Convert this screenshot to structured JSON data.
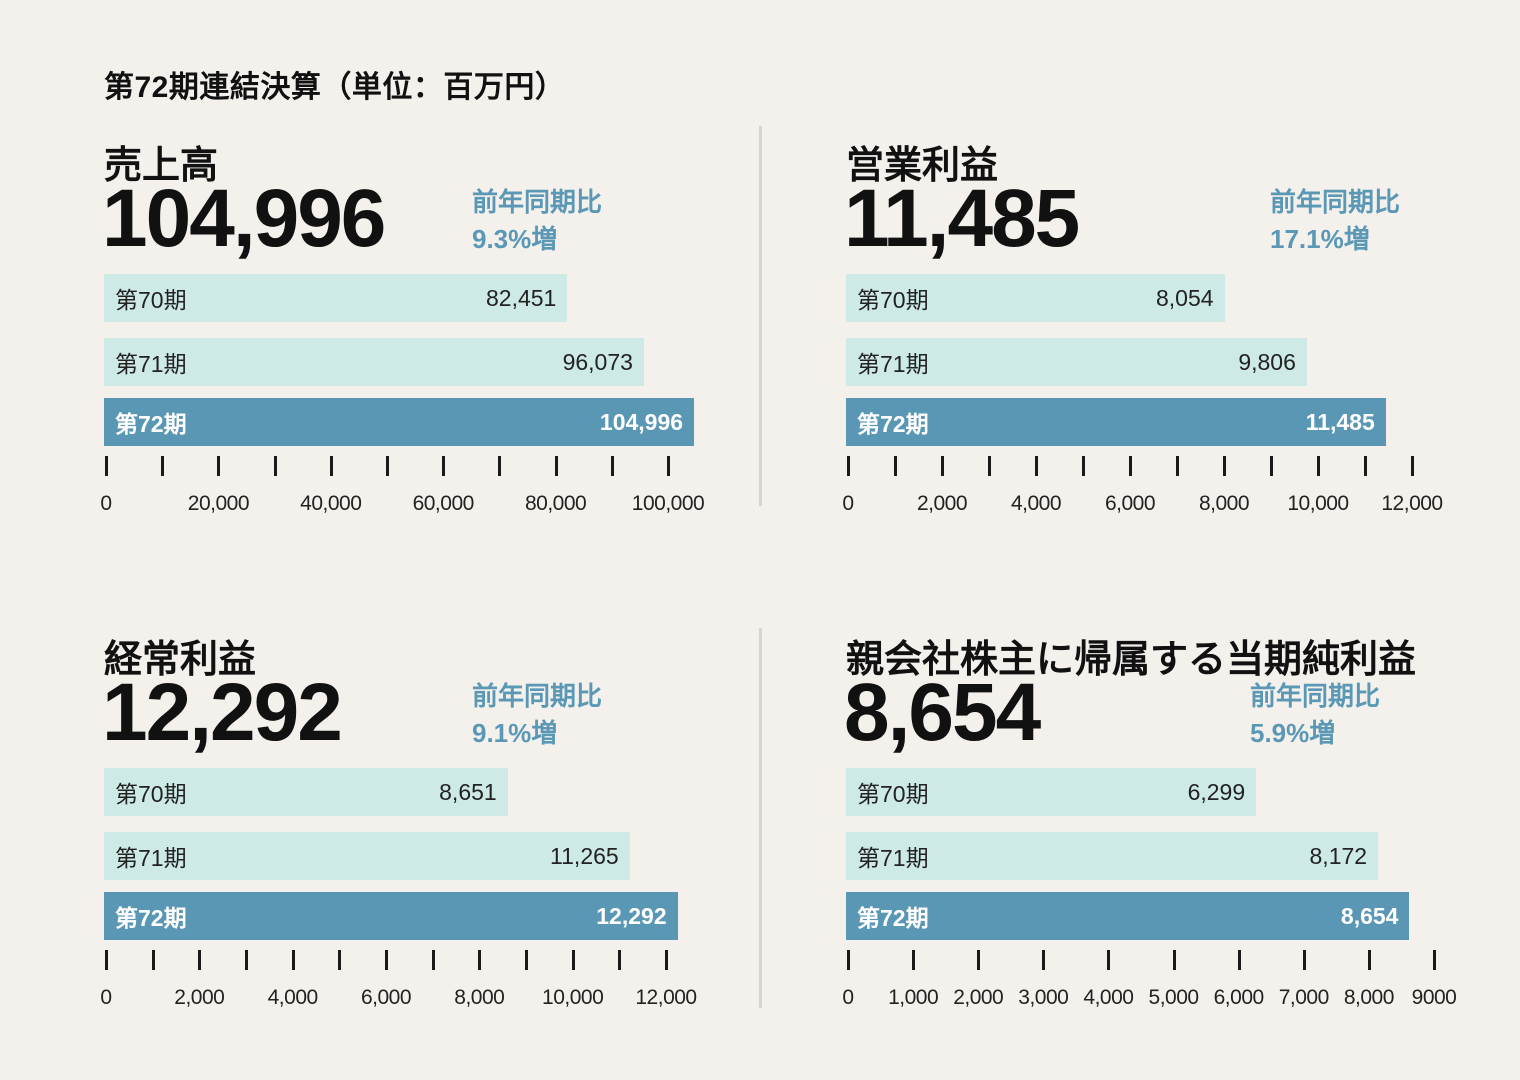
{
  "page_title": "第72期連結決算（単位：百万円）",
  "chart_data": [
    {
      "type": "bar",
      "title": "売上高",
      "headline": "104,996",
      "yoy_label": "前年同期比",
      "yoy_value": "9.3%増",
      "categories": [
        "第70期",
        "第71期",
        "第72期"
      ],
      "values": [
        82451,
        96073,
        104996
      ],
      "value_labels": [
        "82,451",
        "96,073",
        "104,996"
      ],
      "xlim": [
        0,
        100000
      ],
      "ticks": [
        0,
        10000,
        20000,
        30000,
        40000,
        50000,
        60000,
        70000,
        80000,
        90000,
        100000
      ],
      "tick_labels": [
        "0",
        "20,000",
        "40,000",
        "60,000",
        "80,000",
        "100,000"
      ],
      "tick_label_values": [
        0,
        20000,
        40000,
        60000,
        80000,
        100000
      ]
    },
    {
      "type": "bar",
      "title": "営業利益",
      "headline": "11,485",
      "yoy_label": "前年同期比",
      "yoy_value": "17.1%増",
      "categories": [
        "第70期",
        "第71期",
        "第72期"
      ],
      "values": [
        8054,
        9806,
        11485
      ],
      "value_labels": [
        "8,054",
        "9,806",
        "11,485"
      ],
      "xlim": [
        0,
        12000
      ],
      "ticks": [
        0,
        1000,
        2000,
        3000,
        4000,
        5000,
        6000,
        7000,
        8000,
        9000,
        10000,
        11000,
        12000
      ],
      "tick_labels": [
        "0",
        "2,000",
        "4,000",
        "6,000",
        "8,000",
        "10,000",
        "12,000"
      ],
      "tick_label_values": [
        0,
        2000,
        4000,
        6000,
        8000,
        10000,
        12000
      ]
    },
    {
      "type": "bar",
      "title": "経常利益",
      "headline": "12,292",
      "yoy_label": "前年同期比",
      "yoy_value": "9.1%増",
      "categories": [
        "第70期",
        "第71期",
        "第72期"
      ],
      "values": [
        8651,
        11265,
        12292
      ],
      "value_labels": [
        "8,651",
        "11,265",
        "12,292"
      ],
      "xlim": [
        0,
        12000
      ],
      "ticks": [
        0,
        1000,
        2000,
        3000,
        4000,
        5000,
        6000,
        7000,
        8000,
        9000,
        10000,
        11000,
        12000
      ],
      "tick_labels": [
        "0",
        "2,000",
        "4,000",
        "6,000",
        "8,000",
        "10,000",
        "12,000"
      ],
      "tick_label_values": [
        0,
        2000,
        4000,
        6000,
        8000,
        10000,
        12000
      ]
    },
    {
      "type": "bar",
      "title": "親会社株主に帰属する当期純利益",
      "headline": "8,654",
      "yoy_label": "前年同期比",
      "yoy_value": "5.9%増",
      "categories": [
        "第70期",
        "第71期",
        "第72期"
      ],
      "values": [
        6299,
        8172,
        8654
      ],
      "value_labels": [
        "6,299",
        "8,172",
        "8,654"
      ],
      "xlim": [
        0,
        9000
      ],
      "ticks": [
        0,
        1000,
        2000,
        3000,
        4000,
        5000,
        6000,
        7000,
        8000,
        9000
      ],
      "tick_labels": [
        "0",
        "1,000",
        "2,000",
        "3,000",
        "4,000",
        "5,000",
        "6,000",
        "7,000",
        "8,000",
        "9000"
      ],
      "tick_label_values": [
        0,
        1000,
        2000,
        3000,
        4000,
        5000,
        6000,
        7000,
        8000,
        9000
      ]
    }
  ],
  "colors": {
    "past_bar": "#cdeae6",
    "current_bar": "#5a97b5",
    "accent_text": "#5a98b5",
    "background": "#f4f1ed"
  }
}
